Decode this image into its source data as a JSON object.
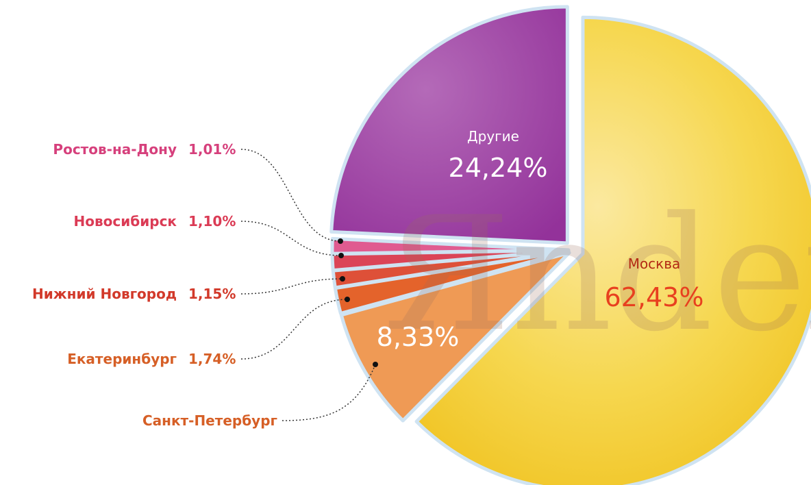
{
  "chart_data": {
    "type": "pie",
    "title": "",
    "watermark": "Яndex",
    "slices": [
      {
        "name": "Москва",
        "value": 62.43,
        "value_label": "62,43%",
        "color": "#f6d247",
        "label_color": "#b32a14",
        "value_color": "#e8401f"
      },
      {
        "name": "Санкт-Петербург",
        "value": 8.33,
        "value_label": "8,33%",
        "color": "#ef9a55",
        "label_color": "#d65f26",
        "value_color": "#ffffff"
      },
      {
        "name": "Екатеринбург",
        "value": 1.74,
        "value_label": "1,74%",
        "color": "#e4632b",
        "label_color": "#d65f26",
        "value_color": "#d65f26"
      },
      {
        "name": "Нижний Новгород",
        "value": 1.15,
        "value_label": "1,15%",
        "color": "#de5038",
        "label_color": "#d2392a",
        "value_color": "#d2392a"
      },
      {
        "name": "Новосибирск",
        "value": 1.1,
        "value_label": "1,10%",
        "color": "#db4457",
        "label_color": "#db3b55",
        "value_color": "#db3b55"
      },
      {
        "name": "Ростов-на-Дону",
        "value": 1.01,
        "value_label": "1,01%",
        "color": "#e05b90",
        "label_color": "#d6407c",
        "value_color": "#d6407c"
      },
      {
        "name": "Другие",
        "value": 24.24,
        "value_label": "24,24%",
        "color": "#a24ba8",
        "label_color": "#ffffff",
        "value_color": "#ffffff"
      }
    ],
    "legend": "callouts-left"
  }
}
